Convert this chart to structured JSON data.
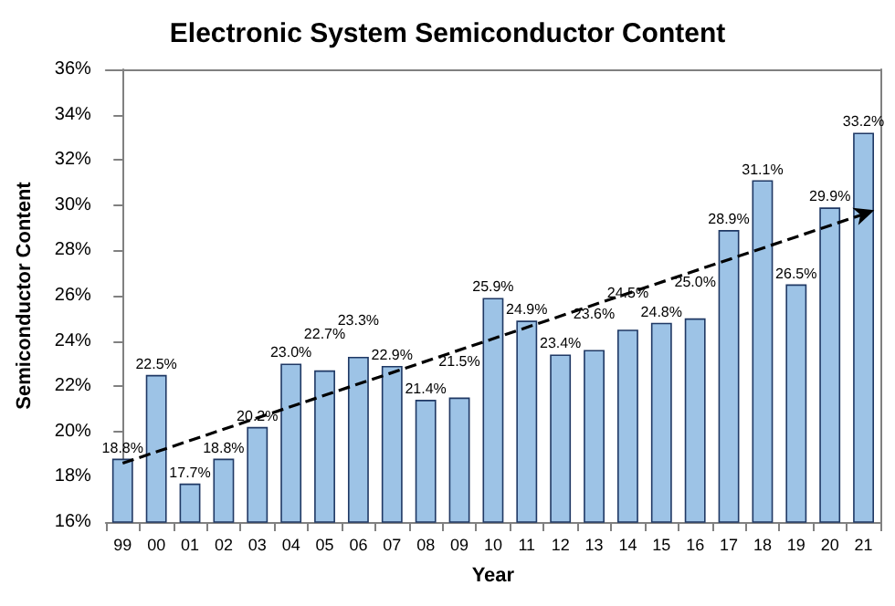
{
  "chart_data": {
    "type": "bar",
    "title": "Electronic System Semiconductor Content",
    "xlabel": "Year",
    "ylabel": "Semiconductor Content",
    "categories": [
      "99",
      "00",
      "01",
      "02",
      "03",
      "04",
      "05",
      "06",
      "07",
      "08",
      "09",
      "10",
      "11",
      "12",
      "13",
      "14",
      "15",
      "16",
      "17",
      "18",
      "19",
      "20",
      "21"
    ],
    "series": [
      {
        "color": "#9dc3e6",
        "values": [
          18.8,
          22.5,
          17.7,
          18.8,
          20.2,
          23.0,
          22.7,
          23.3,
          22.9,
          21.4,
          21.5,
          25.9,
          24.9,
          23.4,
          23.6,
          24.5,
          24.8,
          25.0,
          28.9,
          31.1,
          26.5,
          29.9,
          33.2
        ]
      },
      {
        "type": "line",
        "color": "#000000",
        "line_style": "dashed",
        "x": [
          "99",
          "21"
        ],
        "values": [
          18.6,
          29.6
        ]
      }
    ],
    "value_labels": [
      "18.8%",
      "22.5%",
      "17.7%",
      "18.8%",
      "20.2%",
      "23.0%",
      "22.7%",
      "23.3%",
      "22.9%",
      "21.4%",
      "21.5%",
      "25.9%",
      "24.9%",
      "23.4%",
      "23.6%",
      "24.5%",
      "24.8%",
      "25.0%",
      "28.9%",
      "31.1%",
      "26.5%",
      "29.9%",
      "33.2%"
    ],
    "ylim": [
      16,
      36
    ],
    "yticks": [
      {
        "value": 16,
        "label": "16%"
      },
      {
        "value": 18,
        "label": "18%"
      },
      {
        "value": 20,
        "label": "20%"
      },
      {
        "value": 22,
        "label": "22%"
      },
      {
        "value": 24,
        "label": "24%"
      },
      {
        "value": 26,
        "label": "26%"
      },
      {
        "value": 28,
        "label": "28%"
      },
      {
        "value": 30,
        "label": "30%"
      },
      {
        "value": 32,
        "label": "32%"
      },
      {
        "value": 34,
        "label": "34%"
      },
      {
        "value": 36,
        "label": "36%"
      }
    ],
    "grid": false
  }
}
